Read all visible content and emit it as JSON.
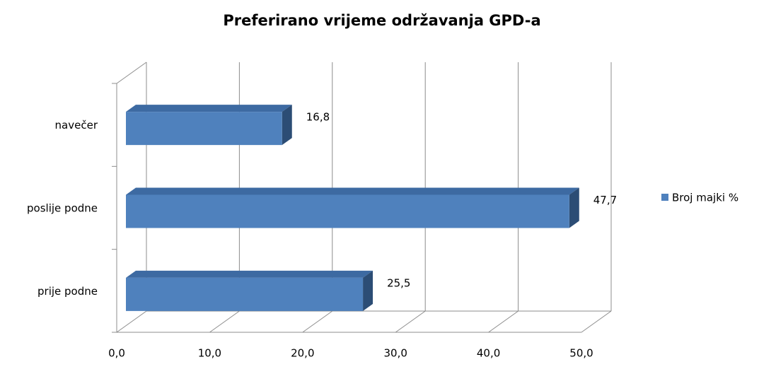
{
  "chart_data": {
    "type": "bar3d_horizontal",
    "title": "Preferirano vrijeme održavanja GPD-a",
    "categories": [
      "prije podne",
      "poslije podne",
      "navečer"
    ],
    "series": [
      {
        "name": "Broj majki %",
        "color": "#4f81bd",
        "values": [
          25.5,
          47.7,
          16.8
        ],
        "value_labels": [
          "25,5",
          "47,7",
          "16,8"
        ]
      }
    ],
    "xlim": [
      0,
      50
    ],
    "xticks": [
      {
        "value": 0,
        "label": "0,0"
      },
      {
        "value": 10,
        "label": "10,0"
      },
      {
        "value": 20,
        "label": "20,0"
      },
      {
        "value": 30,
        "label": "30,0"
      },
      {
        "value": 40,
        "label": "40,0"
      },
      {
        "value": 50,
        "label": "50,0"
      }
    ],
    "grid": true,
    "legend": "right"
  }
}
